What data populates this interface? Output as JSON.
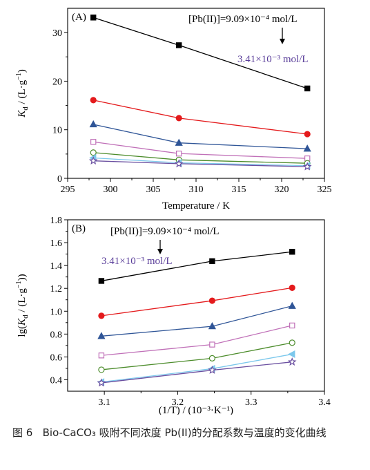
{
  "figure": {
    "caption_prefix": "图 6",
    "caption_text": "Bio-CaCO₃ 吸附不同浓度 Pb(II)的分配系数与温度的变化曲线"
  },
  "chart_data": [
    {
      "type": "line",
      "panel_label": "(A)",
      "xlabel": "Temperature / K",
      "ylabel_main": "K",
      "ylabel_sub": "d",
      "ylabel_unit": " / (L·g",
      "ylabel_exp": "−1",
      "ylabel_close": ")",
      "xlim": [
        295,
        325
      ],
      "ylim": [
        0,
        35
      ],
      "xticks": [
        "295",
        "300",
        "305",
        "310",
        "315",
        "320",
        "325"
      ],
      "yticks": [
        "0",
        "10",
        "20",
        "30"
      ],
      "annotation_high": "[Pb(II)]=9.09×10⁻⁴ mol/L",
      "annotation_low": "3.41×10⁻³ mol/L",
      "x": [
        298,
        308,
        323
      ],
      "series": [
        {
          "marker": "square",
          "filled": true,
          "color": "#000000",
          "values": [
            33.1,
            27.4,
            18.5
          ]
        },
        {
          "marker": "circle",
          "filled": true,
          "color": "#e41a1c",
          "values": [
            16.1,
            12.4,
            9.1
          ]
        },
        {
          "marker": "triangle",
          "filled": true,
          "color": "#2f5597",
          "values": [
            11.1,
            7.3,
            6.1
          ]
        },
        {
          "marker": "square",
          "filled": false,
          "color": "#c070b8",
          "values": [
            7.5,
            5.1,
            4.1
          ]
        },
        {
          "marker": "circle",
          "filled": false,
          "color": "#4c8c2b",
          "values": [
            5.3,
            3.8,
            3.1
          ]
        },
        {
          "marker": "triangle-left",
          "filled": true,
          "color": "#7cc8ec",
          "values": [
            4.2,
            3.2,
            2.6
          ]
        },
        {
          "marker": "star",
          "filled": false,
          "color": "#6a4fa0",
          "values": [
            3.6,
            3.0,
            2.4
          ]
        }
      ]
    },
    {
      "type": "line",
      "panel_label": "(B)",
      "xlabel": "(1/T) / (10⁻³·K⁻¹)",
      "ylabel_main": "lg(K",
      "ylabel_sub": "d",
      "ylabel_unit": " / (L·g",
      "ylabel_exp": "−1",
      "ylabel_close": "))",
      "xlim": [
        3.05,
        3.4
      ],
      "ylim": [
        0.3,
        1.8
      ],
      "xticks": [
        "3.1",
        "3.2",
        "3.3",
        "3.4"
      ],
      "yticks": [
        "0.4",
        "0.6",
        "0.8",
        "1.0",
        "1.2",
        "1.4",
        "1.6",
        "1.8"
      ],
      "annotation_high": "[Pb(II)]=9.09×10⁻⁴ mol/L",
      "annotation_low": "3.41×10⁻³ mol/L",
      "x": [
        3.096,
        3.247,
        3.356
      ],
      "series": [
        {
          "marker": "square",
          "filled": true,
          "color": "#000000",
          "values": [
            1.265,
            1.438,
            1.52
          ]
        },
        {
          "marker": "circle",
          "filled": true,
          "color": "#e41a1c",
          "values": [
            0.96,
            1.092,
            1.205
          ]
        },
        {
          "marker": "triangle",
          "filled": true,
          "color": "#2f5597",
          "values": [
            0.782,
            0.868,
            1.046
          ]
        },
        {
          "marker": "square",
          "filled": false,
          "color": "#c070b8",
          "values": [
            0.613,
            0.708,
            0.875
          ]
        },
        {
          "marker": "circle",
          "filled": false,
          "color": "#4c8c2b",
          "values": [
            0.488,
            0.588,
            0.724
          ]
        },
        {
          "marker": "triangle-left",
          "filled": true,
          "color": "#7cc8ec",
          "values": [
            0.38,
            0.497,
            0.624
          ]
        },
        {
          "marker": "star",
          "filled": false,
          "color": "#6a4fa0",
          "values": [
            0.373,
            0.484,
            0.556
          ]
        }
      ]
    }
  ]
}
